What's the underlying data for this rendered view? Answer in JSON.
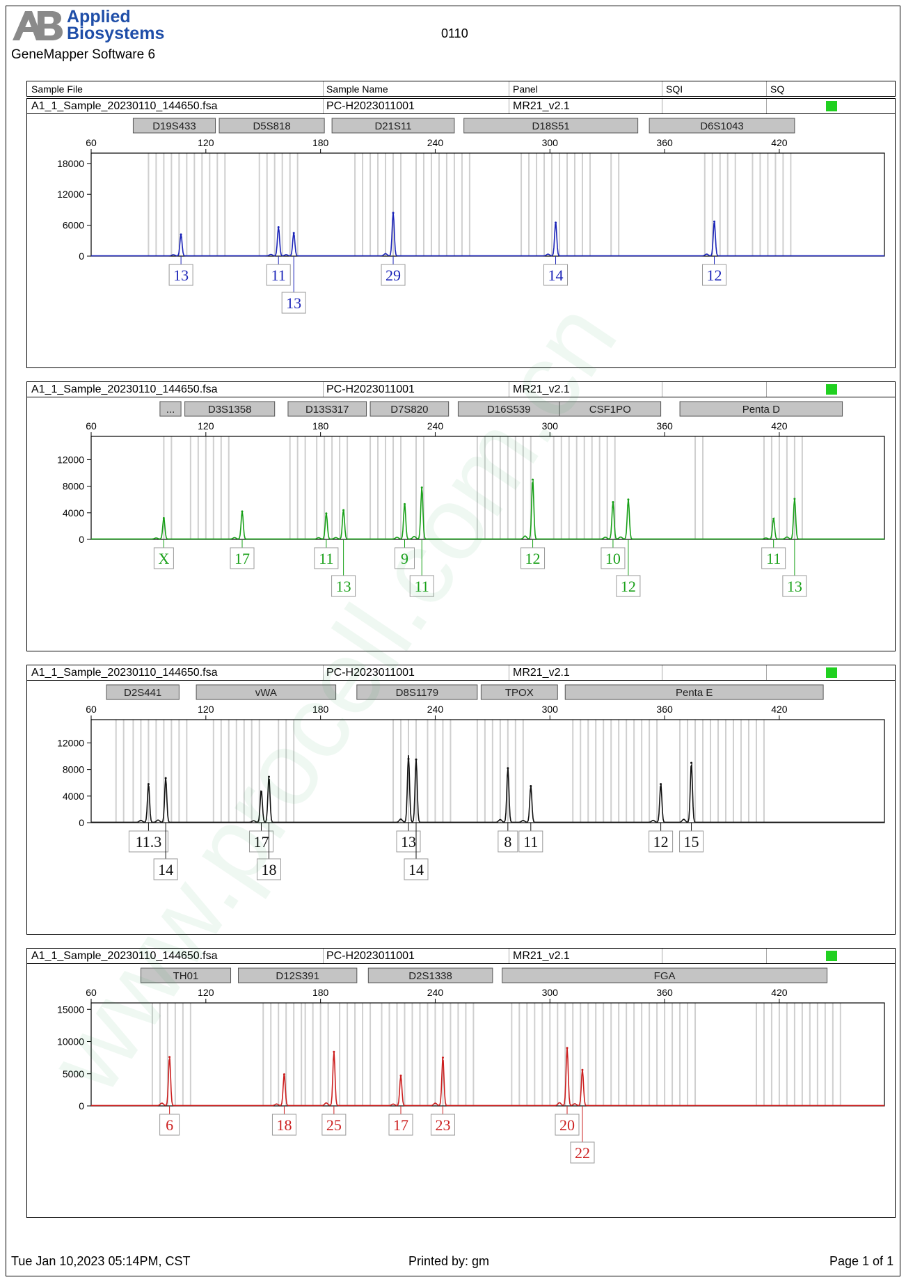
{
  "header": {
    "brand_line1": "Applied",
    "brand_line2": "Biosystems",
    "software": "GeneMapper Software 6",
    "doc_id": "0110"
  },
  "columns": {
    "sample_file": "Sample File",
    "sample_name": "Sample Name",
    "panel": "Panel",
    "sqi": "SQI",
    "sq": "SQ"
  },
  "watermark": "www.procell.com.cn",
  "colors": {
    "blue": "#1a23b8",
    "green": "#18a018",
    "black": "#111111",
    "red": "#cc1f1f",
    "qc": "#20d020"
  },
  "chart_data": [
    {
      "type": "line",
      "dye": "blue",
      "sample_file": "A1_1_Sample_20230110_144650.fsa",
      "sample_name": "PC-H2023011001",
      "panel": "MR21_v2.1",
      "x_ticks": [
        60,
        120,
        180,
        240,
        300,
        360,
        420
      ],
      "y_ticks": [
        0,
        6000,
        12000,
        18000
      ],
      "xlim": [
        60,
        475
      ],
      "ylim": [
        0,
        20000
      ],
      "markers": [
        {
          "name": "D19S433",
          "start": 82,
          "end": 125
        },
        {
          "name": "D5S818",
          "start": 127,
          "end": 182
        },
        {
          "name": "D21S11",
          "start": 186,
          "end": 250
        },
        {
          "name": "D18S51",
          "start": 255,
          "end": 346
        },
        {
          "name": "D6S1043",
          "start": 352,
          "end": 428
        }
      ],
      "bins": [
        [
          90,
          130
        ],
        [
          148,
          168
        ],
        [
          198,
          222
        ],
        [
          230,
          258
        ],
        [
          285,
          322
        ],
        [
          332,
          338
        ],
        [
          381,
          400
        ],
        [
          406,
          428
        ]
      ],
      "peaks": [
        {
          "x": 107,
          "height": 4200,
          "label": "13",
          "row": 0
        },
        {
          "x": 158,
          "height": 5600,
          "label": "11",
          "row": 0
        },
        {
          "x": 166,
          "height": 4500,
          "label": "13",
          "row": 1
        },
        {
          "x": 218,
          "height": 8400,
          "label": "29",
          "row": 0
        },
        {
          "x": 303,
          "height": 6500,
          "label": "14",
          "row": 0
        },
        {
          "x": 386,
          "height": 6700,
          "label": "12",
          "row": 0
        }
      ]
    },
    {
      "type": "line",
      "dye": "green",
      "sample_file": "A1_1_Sample_20230110_144650.fsa",
      "sample_name": "PC-H2023011001",
      "panel": "MR21_v2.1",
      "x_ticks": [
        60,
        120,
        180,
        240,
        300,
        360,
        420
      ],
      "y_ticks": [
        0,
        4000,
        8000,
        12000
      ],
      "xlim": [
        60,
        475
      ],
      "ylim": [
        0,
        15500
      ],
      "markers": [
        {
          "name": "...",
          "start": 96,
          "end": 107
        },
        {
          "name": "D3S1358",
          "start": 109,
          "end": 156
        },
        {
          "name": "D13S317",
          "start": 163,
          "end": 204
        },
        {
          "name": "D7S820",
          "start": 206,
          "end": 247
        },
        {
          "name": "D16S539",
          "start": 252,
          "end": 305
        },
        {
          "name": "CSF1PO",
          "start": 305,
          "end": 358
        },
        {
          "name": "Penta D",
          "start": 368,
          "end": 453
        }
      ],
      "bins": [
        [
          98,
          102
        ],
        [
          112,
          134
        ],
        [
          164,
          172
        ],
        [
          178,
          196
        ],
        [
          206,
          224
        ],
        [
          230,
          236
        ],
        [
          262,
          292
        ],
        [
          302,
          334
        ],
        [
          376,
          382
        ],
        [
          412,
          432
        ]
      ],
      "peaks": [
        {
          "x": 98,
          "height": 3200,
          "label": "X",
          "row": 0
        },
        {
          "x": 139,
          "height": 4200,
          "label": "17",
          "row": 0
        },
        {
          "x": 183,
          "height": 3900,
          "label": "11",
          "row": 0
        },
        {
          "x": 192,
          "height": 4400,
          "label": "13",
          "row": 1
        },
        {
          "x": 224,
          "height": 5300,
          "label": "9",
          "row": 0
        },
        {
          "x": 233,
          "height": 7800,
          "label": "11",
          "row": 1
        },
        {
          "x": 291,
          "height": 9000,
          "label": "12",
          "row": 0
        },
        {
          "x": 333,
          "height": 5600,
          "label": "10",
          "row": 0
        },
        {
          "x": 341,
          "height": 6000,
          "label": "12",
          "row": 1
        },
        {
          "x": 417,
          "height": 3100,
          "label": "11",
          "row": 0
        },
        {
          "x": 428,
          "height": 6100,
          "label": "13",
          "row": 1
        }
      ]
    },
    {
      "type": "line",
      "dye": "black",
      "sample_file": "A1_1_Sample_20230110_144650.fsa",
      "sample_name": "PC-H2023011001",
      "panel": "MR21_v2.1",
      "x_ticks": [
        60,
        120,
        180,
        240,
        300,
        360,
        420
      ],
      "y_ticks": [
        0,
        4000,
        8000,
        12000
      ],
      "xlim": [
        60,
        475
      ],
      "ylim": [
        0,
        15500
      ],
      "markers": [
        {
          "name": "D2S441",
          "start": 68,
          "end": 106
        },
        {
          "name": "vWA",
          "start": 115,
          "end": 188
        },
        {
          "name": "D8S1179",
          "start": 199,
          "end": 262
        },
        {
          "name": "TPOX",
          "start": 264,
          "end": 304
        },
        {
          "name": "Penta E",
          "start": 308,
          "end": 443
        }
      ],
      "bins": [
        [
          73,
          80
        ],
        [
          82,
          112
        ],
        [
          124,
          150
        ],
        [
          158,
          168
        ],
        [
          218,
          230
        ],
        [
          236,
          248
        ],
        [
          262,
          288
        ],
        [
          312,
          356
        ],
        [
          368,
          412
        ]
      ],
      "peaks": [
        {
          "x": 90,
          "height": 5800,
          "label": "11.3",
          "row": 0
        },
        {
          "x": 99,
          "height": 6700,
          "label": "14",
          "row": 1
        },
        {
          "x": 149,
          "height": 4600,
          "label": "17",
          "row": 0
        },
        {
          "x": 153,
          "height": 6900,
          "label": "18",
          "row": 1
        },
        {
          "x": 226,
          "height": 9600,
          "label": "13",
          "row": 0
        },
        {
          "x": 230,
          "height": 9500,
          "label": "14",
          "row": 1
        },
        {
          "x": 278,
          "height": 8200,
          "label": "8",
          "row": 0
        },
        {
          "x": 290,
          "height": 5500,
          "label": "11",
          "row": 0
        },
        {
          "x": 358,
          "height": 5800,
          "label": "12",
          "row": 0
        },
        {
          "x": 374,
          "height": 9000,
          "label": "15",
          "row": 0
        }
      ]
    },
    {
      "type": "line",
      "dye": "red",
      "sample_file": "A1_1_Sample_20230110_144650.fsa",
      "sample_name": "PC-H2023011001",
      "panel": "MR21_v2.1",
      "x_ticks": [
        60,
        120,
        180,
        240,
        300,
        360,
        420
      ],
      "y_ticks": [
        0,
        5000,
        10000,
        15000
      ],
      "xlim": [
        60,
        475
      ],
      "ylim": [
        0,
        16000
      ],
      "markers": [
        {
          "name": "TH01",
          "start": 86,
          "end": 133
        },
        {
          "name": "D12S391",
          "start": 137,
          "end": 199
        },
        {
          "name": "D2S1338",
          "start": 205,
          "end": 270
        },
        {
          "name": "FGA",
          "start": 275,
          "end": 445
        }
      ],
      "bins": [
        [
          92,
          114
        ],
        [
          150,
          170
        ],
        [
          172,
          186
        ],
        [
          190,
          208
        ],
        [
          212,
          262
        ],
        [
          280,
          376
        ],
        [
          408,
          452
        ]
      ],
      "peaks": [
        {
          "x": 101,
          "height": 7600,
          "label": "6",
          "row": 0
        },
        {
          "x": 161,
          "height": 4900,
          "label": "18",
          "row": 0
        },
        {
          "x": 187,
          "height": 8400,
          "label": "25",
          "row": 0
        },
        {
          "x": 222,
          "height": 4700,
          "label": "17",
          "row": 0
        },
        {
          "x": 244,
          "height": 7500,
          "label": "23",
          "row": 0
        },
        {
          "x": 309,
          "height": 9000,
          "label": "20",
          "row": 0
        },
        {
          "x": 317,
          "height": 5600,
          "label": "22",
          "row": 1
        }
      ]
    }
  ],
  "footer": {
    "date": "Tue Jan 10,2023 05:14PM, CST",
    "printed_by": "Printed by: gm",
    "page": "Page 1 of 1"
  }
}
